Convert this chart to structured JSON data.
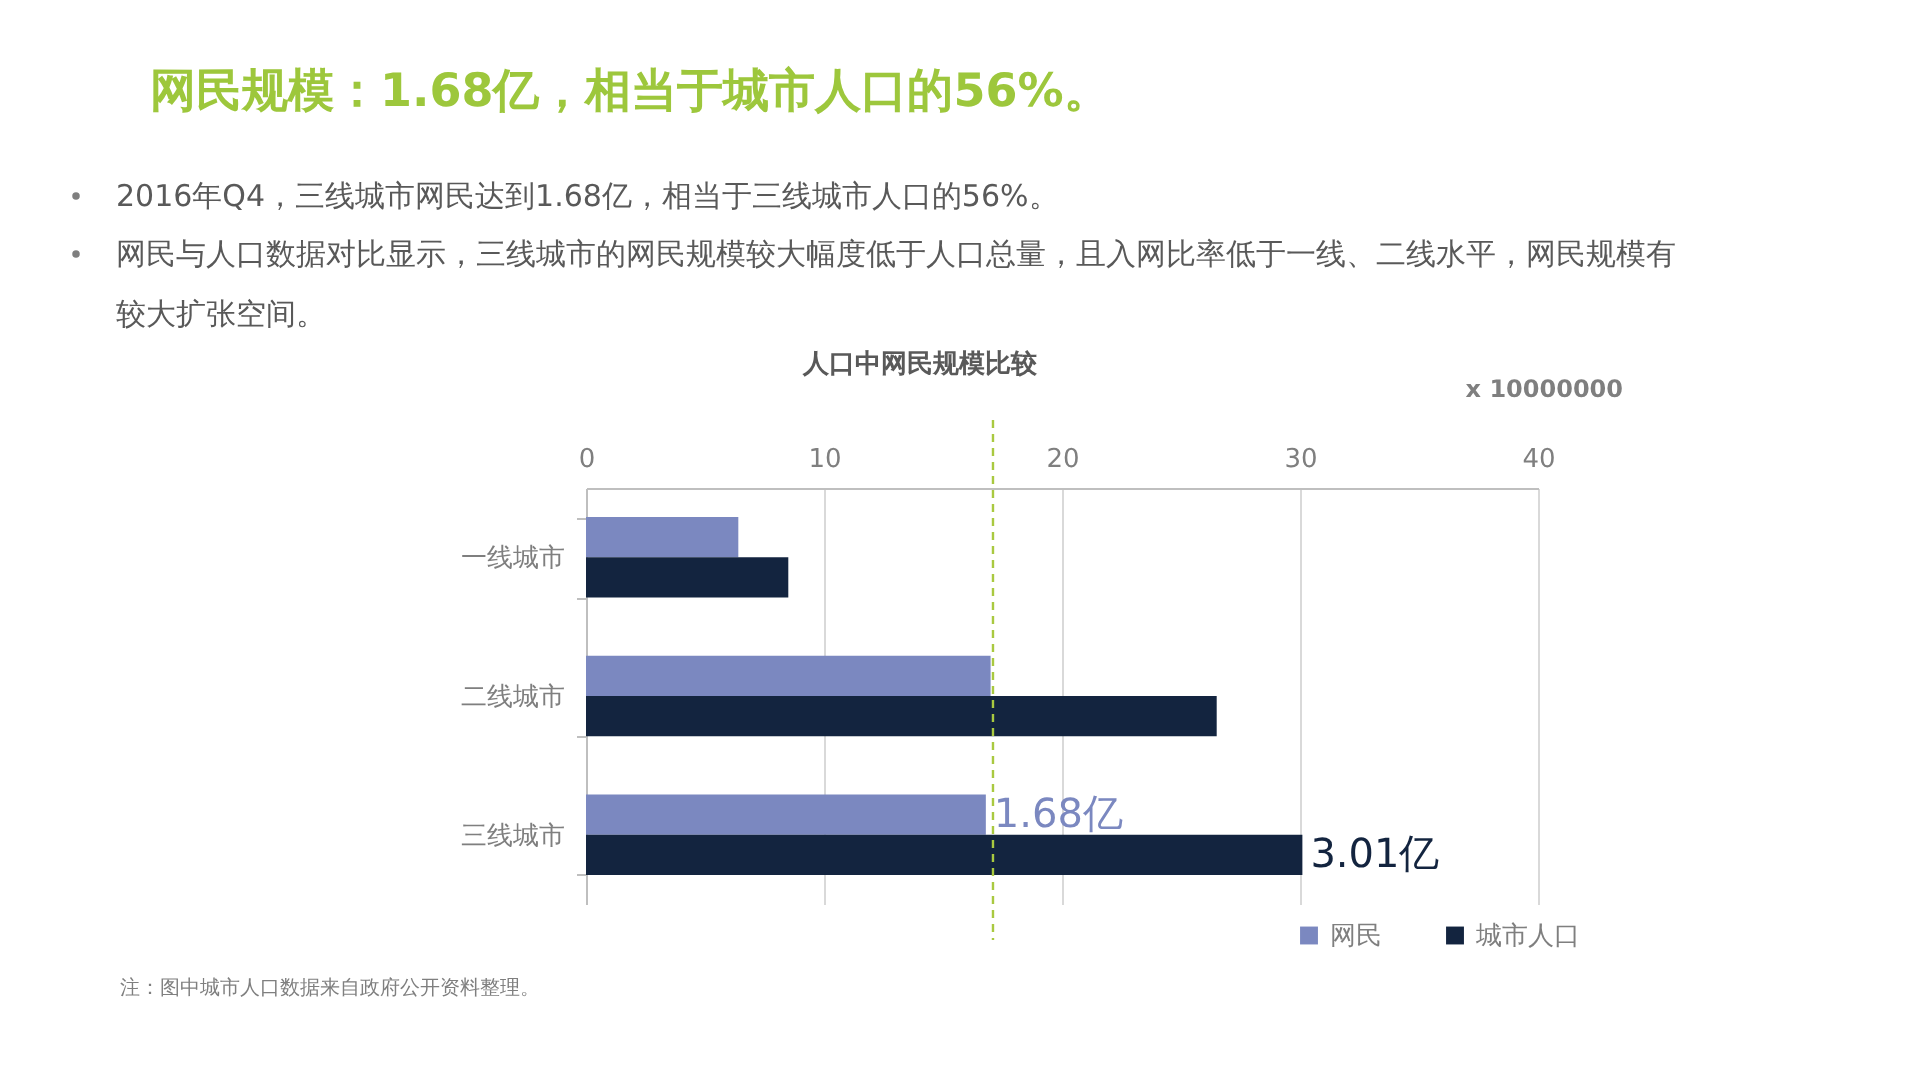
{
  "chart_data": {
    "type": "bar",
    "orientation": "horizontal",
    "title": "网民规模：1.68亿，相当于城市人口的56%。",
    "subtitle": "人口中网民规模比较",
    "xlabel": "x 10000000",
    "annotations": [
      "2016年Q4，三线城市网民达到1.68亿，相当于三线城市人口的56%。",
      "网民与人口数据对比显示，三线城市的网民规模较大幅度低于人口总量，且入网比率低于一线、二线水平，网民规模有较大扩张空间。",
      {
        "text": "1.68亿",
        "x": 16.8,
        "y": "三线城市"
      },
      {
        "text": "3.01亿",
        "x": 30.1,
        "y": "三线城市"
      },
      "注：图中城市人口数据来自政府公开资料整理。"
    ],
    "categories": [
      "一线城市",
      "二线城市",
      "三线城市"
    ],
    "series": [
      {
        "name": "网民",
        "color": "#7b88c0",
        "values": [
          6.4,
          17.0,
          16.8
        ]
      },
      {
        "name": "城市人口",
        "color": "#13243f",
        "values": [
          8.5,
          26.5,
          30.1
        ]
      }
    ],
    "xlim": [
      0,
      40
    ],
    "xticks": [
      0,
      10,
      20,
      30,
      40
    ],
    "grid": "x",
    "legend": "bottom right",
    "ref_lines": [
      {
        "axis": "x",
        "value": 17.1,
        "color": "#a9c940",
        "line_style": "dashed"
      }
    ]
  }
}
